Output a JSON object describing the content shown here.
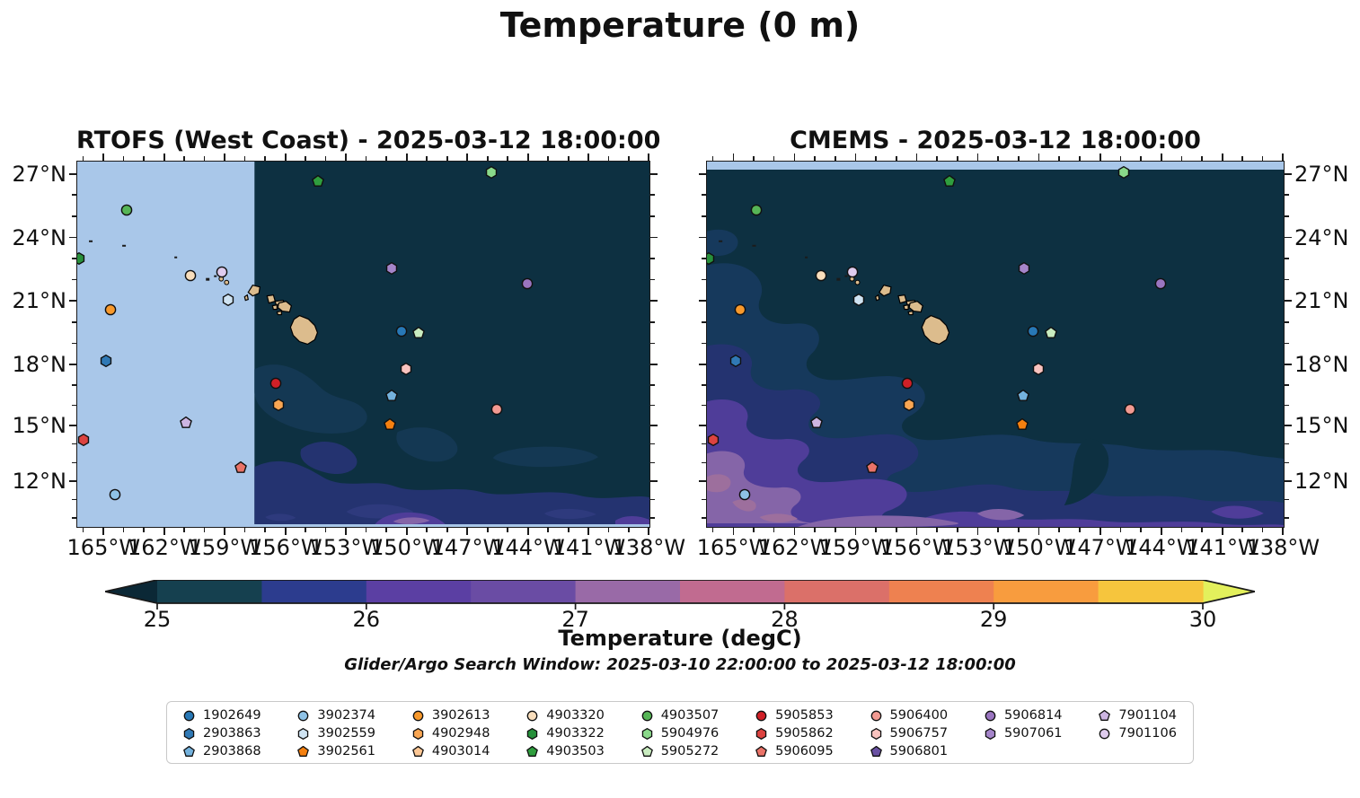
{
  "title": "Temperature (0 m)",
  "subtitle": "Glider/Argo Search Window: 2025-03-10 22:00:00 to 2025-03-12 18:00:00",
  "panels": [
    {
      "name": "rtofs",
      "title": "RTOFS (West Coast) - 2025-03-12 18:00:00"
    },
    {
      "name": "cmems",
      "title": "CMEMS - 2025-03-12 18:00:00"
    }
  ],
  "axes": {
    "x_tick_labels": [
      "165°W",
      "162°W",
      "159°W",
      "156°W",
      "153°W",
      "150°W",
      "147°W",
      "144°W",
      "141°W",
      "138°W"
    ],
    "x_tick_pct": [
      4.6,
      15.2,
      25.8,
      36.4,
      47.0,
      57.6,
      68.2,
      78.8,
      89.4,
      99.9
    ],
    "y_tick_labels": [
      "27°N",
      "24°N",
      "21°N",
      "18°N",
      "15°N",
      "12°N"
    ],
    "y_tick_pct": [
      3.4,
      20.8,
      38.2,
      55.6,
      72.3,
      87.5
    ]
  },
  "colorbar": {
    "label": "Temperature (degC)",
    "tick_labels": [
      "25",
      "26",
      "27",
      "28",
      "29",
      "30"
    ],
    "bin_edges": [
      25,
      25.5,
      26,
      26.5,
      27,
      27.5,
      28,
      28.5,
      29,
      29.5,
      30
    ],
    "under_color": "#0b2836",
    "over_color": "#e3f05c",
    "segment_colors": [
      "#15404f",
      "#2c3c8e",
      "#5b3fa3",
      "#6a4ca4",
      "#996aa7",
      "#c16b90",
      "#db7069",
      "#ee8150",
      "#f89c3e",
      "#f6c53d"
    ]
  },
  "map": {
    "no_data_color": "#a9c7e9",
    "land_color": "#dcbc8d",
    "fills": {
      "base": "#0d3041",
      "mid": "#16395c",
      "mid2": "#143853",
      "navy": "#243370",
      "navy2": "#2e3a7d",
      "purple": "#4f3d99",
      "mauve": "#8565a8",
      "rose": "#9d6f9d",
      "speck": "#1b1b1b"
    },
    "rtofs_no_data_boundary_pct": 31.0
  },
  "legend": {
    "columns": [
      [
        "1902649",
        "2903863",
        "2903868"
      ],
      [
        "3902374",
        "3902559",
        "3902561"
      ],
      [
        "3902613",
        "4902948",
        "4903014"
      ],
      [
        "4903320",
        "4903322",
        "4903503"
      ],
      [
        "4903507",
        "5904976",
        "5905272"
      ],
      [
        "5905853",
        "5905862",
        "5906095"
      ],
      [
        "5906400",
        "5906757",
        "5906801"
      ],
      [
        "5906814",
        "5907061"
      ],
      [
        "7901104",
        "7901106"
      ]
    ]
  },
  "chart_data": {
    "type": "scatter",
    "title": "Temperature (0 m)",
    "description": "Sea-surface temperature (0 m) from two model fields (RTOFS West Coast and CMEMS, both valid 2025-03-12 18:00:00) around Hawaii, with Argo float / glider surfacing positions overlaid; both panels share the same floats.",
    "lon_range_degW": [
      166.3,
      138.0
    ],
    "lat_range_degN": [
      10.5,
      27.6
    ],
    "temperature_scale_degC": {
      "min": 25,
      "max": 30,
      "step": 0.5
    },
    "floats": [
      {
        "id": "1902649",
        "shape": "circle",
        "color": "#2878b6",
        "lon_degW": 150.3,
        "lat_degN": 19.6,
        "x_pct": 56.6,
        "y_pct": 46.3
      },
      {
        "id": "2903863",
        "shape": "hexagon",
        "color": "#3079b5",
        "lon_degW": 164.9,
        "lat_degN": 18.3,
        "x_pct": 5.0,
        "y_pct": 54.2
      },
      {
        "id": "2903868",
        "shape": "pentagon",
        "color": "#74b2dd",
        "lon_degW": 150.8,
        "lat_degN": 16.5,
        "x_pct": 54.9,
        "y_pct": 64.0
      },
      {
        "id": "3902374",
        "shape": "circle",
        "color": "#8fc3e7",
        "lon_degW": 164.4,
        "lat_degN": 11.3,
        "x_pct": 6.6,
        "y_pct": 90.9
      },
      {
        "id": "3902559",
        "shape": "hexagon",
        "color": "#cfe3f2",
        "lon_degW": 158.9,
        "lat_degN": 21.1,
        "x_pct": 26.3,
        "y_pct": 37.5
      },
      {
        "id": "3902561",
        "shape": "pentagon",
        "color": "#f5800f",
        "lon_degW": 150.8,
        "lat_degN": 15.1,
        "x_pct": 54.6,
        "y_pct": 71.8
      },
      {
        "id": "3902613",
        "shape": "circle",
        "color": "#f8992c",
        "lon_degW": 164.6,
        "lat_degN": 20.7,
        "x_pct": 5.8,
        "y_pct": 40.2
      },
      {
        "id": "4902948",
        "shape": "hexagon",
        "color": "#f9a653",
        "lon_degW": 156.4,
        "lat_degN": 16.1,
        "x_pct": 35.1,
        "y_pct": 66.4
      },
      {
        "id": "4903014",
        "shape": "pentagon",
        "color": "#fcc795"
      },
      {
        "id": "4903320",
        "shape": "circle",
        "color": "#f9debc",
        "lon_degW": 160.7,
        "lat_degN": 22.3,
        "x_pct": 19.8,
        "y_pct": 30.9
      },
      {
        "id": "4903322",
        "shape": "hexagon",
        "color": "#27903b",
        "lon_degW": 166.2,
        "lat_degN": 23.1,
        "x_pct": 0.3,
        "y_pct": 26.2
      },
      {
        "id": "4903503",
        "shape": "pentagon",
        "color": "#2f9e3e",
        "lon_degW": 154.4,
        "lat_degN": 26.7,
        "x_pct": 42.0,
        "y_pct": 5.1
      },
      {
        "id": "4903507",
        "shape": "circle",
        "color": "#56b556",
        "lon_degW": 163.8,
        "lat_degN": 25.4,
        "x_pct": 8.6,
        "y_pct": 13.0
      },
      {
        "id": "5904976",
        "shape": "hexagon",
        "color": "#8ad98a",
        "lon_degW": 145.8,
        "lat_degN": 27.1,
        "x_pct": 72.3,
        "y_pct": 2.7
      },
      {
        "id": "5905272",
        "shape": "pentagon",
        "color": "#c9ecc0",
        "lon_degW": 149.4,
        "lat_degN": 19.5,
        "x_pct": 59.6,
        "y_pct": 46.8
      },
      {
        "id": "5905853",
        "shape": "circle",
        "color": "#d02027",
        "lon_degW": 156.5,
        "lat_degN": 17.1,
        "x_pct": 34.7,
        "y_pct": 60.5
      },
      {
        "id": "5905862",
        "shape": "hexagon",
        "color": "#dc4340",
        "lon_degW": 166.0,
        "lat_degN": 14.3,
        "x_pct": 1.1,
        "y_pct": 76.0
      },
      {
        "id": "5906095",
        "shape": "pentagon",
        "color": "#ea7368",
        "lon_degW": 158.2,
        "lat_degN": 12.8,
        "x_pct": 28.6,
        "y_pct": 83.6
      },
      {
        "id": "5906400",
        "shape": "circle",
        "color": "#f29a92",
        "lon_degW": 145.6,
        "lat_degN": 15.8,
        "x_pct": 73.3,
        "y_pct": 67.6
      },
      {
        "id": "5906757",
        "shape": "hexagon",
        "color": "#f9c3bf",
        "lon_degW": 150.0,
        "lat_degN": 17.8,
        "x_pct": 57.5,
        "y_pct": 56.6
      },
      {
        "id": "5906801",
        "shape": "pentagon",
        "color": "#6a51a3"
      },
      {
        "id": "5906814",
        "shape": "circle",
        "color": "#9a75c0",
        "lon_degW": 144.0,
        "lat_degN": 21.9,
        "x_pct": 78.6,
        "y_pct": 33.1
      },
      {
        "id": "5907061",
        "shape": "hexagon",
        "color": "#a585ca",
        "lon_degW": 150.7,
        "lat_degN": 22.6,
        "x_pct": 55.0,
        "y_pct": 28.9
      },
      {
        "id": "7901104",
        "shape": "pentagon",
        "color": "#cdb5e2",
        "lon_degW": 160.9,
        "lat_degN": 15.2,
        "x_pct": 19.0,
        "y_pct": 71.3
      },
      {
        "id": "7901106",
        "shape": "circle",
        "color": "#dfccee",
        "lon_degW": 159.2,
        "lat_degN": 22.4,
        "x_pct": 25.2,
        "y_pct": 29.9
      }
    ]
  }
}
